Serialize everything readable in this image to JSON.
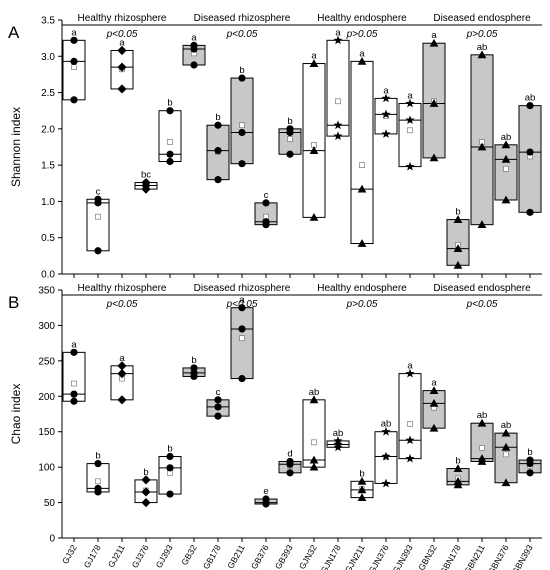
{
  "colors": {
    "healthy_fill": "#ffffff",
    "diseased_fill": "#c8c8c8",
    "stroke": "#000000"
  },
  "categories": [
    "GJ32",
    "GJ178",
    "GJ211",
    "GJ376",
    "GJ393",
    "GB32",
    "GB178",
    "GB211",
    "GB376",
    "GB393",
    "GJN32",
    "GJN178",
    "GJN211",
    "GJN376",
    "GJN393",
    "GBN32",
    "GBN178",
    "GBN211",
    "GBN376",
    "GBN393"
  ],
  "chart_data": [
    {
      "type": "box",
      "panel_label": "A",
      "ylabel": "Shannon index",
      "ylim": [
        0.0,
        3.5
      ],
      "yticks": [
        "0.0",
        "0.5",
        "1.0",
        "1.5",
        "2.0",
        "2.5",
        "3.0",
        "3.5"
      ],
      "groups": [
        {
          "title": "Healthy rhizosphere",
          "pval": "p<0.05",
          "fill": "healthy"
        },
        {
          "title": "Diseased rhizosphere",
          "pval": "p<0.05",
          "fill": "diseased"
        },
        {
          "title": "Healthy endosphere",
          "pval": "p>0.05",
          "fill": "healthy"
        },
        {
          "title": "Diseased endosphere",
          "pval": "p>0.05",
          "fill": "diseased"
        }
      ],
      "boxes": [
        {
          "min": 2.4,
          "median": 2.93,
          "max": 3.22,
          "mean": 2.85,
          "points": [
            3.22,
            2.93,
            2.4
          ],
          "marker": "circle",
          "letter": "a"
        },
        {
          "min": 0.32,
          "median": 0.98,
          "max": 1.03,
          "mean": 0.79,
          "points": [
            1.03,
            0.98,
            0.32
          ],
          "marker": "circle",
          "letter": "c"
        },
        {
          "min": 2.55,
          "median": 2.85,
          "max": 3.08,
          "mean": 2.82,
          "points": [
            3.08,
            2.85,
            2.55
          ],
          "marker": "diamond",
          "letter": "a"
        },
        {
          "min": 1.17,
          "median": 1.22,
          "max": 1.26,
          "mean": 1.22,
          "points": [
            1.26,
            1.22,
            1.17
          ],
          "marker": "diamond",
          "letter": "bc"
        },
        {
          "min": 1.55,
          "median": 1.65,
          "max": 2.25,
          "mean": 1.82,
          "points": [
            2.25,
            1.65,
            1.55
          ],
          "marker": "circle",
          "letter": "b"
        },
        {
          "min": 2.88,
          "median": 3.1,
          "max": 3.15,
          "mean": 3.04,
          "points": [
            3.15,
            3.1,
            2.88
          ],
          "marker": "circle",
          "letter": "a"
        },
        {
          "min": 1.3,
          "median": 1.7,
          "max": 2.05,
          "mean": 1.68,
          "points": [
            2.05,
            1.7,
            1.3
          ],
          "marker": "circle",
          "letter": "b"
        },
        {
          "min": 1.52,
          "median": 1.95,
          "max": 2.7,
          "mean": 2.05,
          "points": [
            2.7,
            1.95,
            1.52
          ],
          "marker": "circle",
          "letter": "b"
        },
        {
          "min": 0.68,
          "median": 0.72,
          "max": 0.98,
          "mean": 0.79,
          "points": [
            0.98,
            0.72,
            0.68
          ],
          "marker": "circle",
          "letter": "c"
        },
        {
          "min": 1.65,
          "median": 1.95,
          "max": 2.0,
          "mean": 1.86,
          "points": [
            2.0,
            1.95,
            1.65
          ],
          "marker": "circle",
          "letter": "b"
        },
        {
          "min": 0.78,
          "median": 1.7,
          "max": 2.9,
          "mean": 1.78,
          "points": [
            2.9,
            1.7,
            0.78
          ],
          "marker": "triangle",
          "letter": "a"
        },
        {
          "min": 1.9,
          "median": 2.05,
          "max": 3.22,
          "mean": 2.38,
          "points": [
            3.22,
            2.05,
            1.9
          ],
          "marker": "star",
          "letter": "a"
        },
        {
          "min": 0.42,
          "median": 1.17,
          "max": 2.93,
          "mean": 1.5,
          "points": [
            2.93,
            1.17,
            0.42
          ],
          "marker": "triangle",
          "letter": "a"
        },
        {
          "min": 1.93,
          "median": 2.2,
          "max": 2.42,
          "mean": 2.18,
          "points": [
            2.42,
            2.2,
            1.93
          ],
          "marker": "star",
          "letter": "a"
        },
        {
          "min": 1.48,
          "median": 2.12,
          "max": 2.35,
          "mean": 1.98,
          "points": [
            2.35,
            2.12,
            1.48
          ],
          "marker": "star",
          "letter": "a"
        },
        {
          "min": 1.6,
          "median": 2.35,
          "max": 3.18,
          "mean": 2.38,
          "points": [
            3.18,
            2.35,
            1.6
          ],
          "marker": "triangle",
          "letter": "a"
        },
        {
          "min": 0.12,
          "median": 0.35,
          "max": 0.75,
          "mean": 0.4,
          "points": [
            0.75,
            0.35,
            0.12
          ],
          "marker": "triangle",
          "letter": "b"
        },
        {
          "min": 0.68,
          "median": 1.75,
          "max": 3.02,
          "mean": 1.82,
          "points": [
            3.02,
            1.75,
            0.68
          ],
          "marker": "triangle",
          "letter": "ab"
        },
        {
          "min": 1.02,
          "median": 1.58,
          "max": 1.78,
          "mean": 1.45,
          "points": [
            1.78,
            1.58,
            1.02
          ],
          "marker": "triangle",
          "letter": "ab"
        },
        {
          "min": 0.85,
          "median": 1.68,
          "max": 2.32,
          "mean": 1.62,
          "points": [
            2.32,
            1.68,
            0.85
          ],
          "marker": "circle",
          "letter": "ab"
        }
      ]
    },
    {
      "type": "box",
      "panel_label": "B",
      "ylabel": "Chao index",
      "ylim": [
        0,
        350
      ],
      "yticks": [
        "0",
        "50",
        "100",
        "150",
        "200",
        "250",
        "300",
        "350"
      ],
      "groups": [
        {
          "title": "Healthy rhizosphere",
          "pval": "p<0.05",
          "fill": "healthy"
        },
        {
          "title": "Diseased rhizosphere",
          "pval": "p<0.05",
          "fill": "diseased"
        },
        {
          "title": "Healthy endosphere",
          "pval": "p>0.05",
          "fill": "healthy"
        },
        {
          "title": "Diseased endosphere",
          "pval": "p<0.05",
          "fill": "diseased"
        }
      ],
      "boxes": [
        {
          "min": 193,
          "median": 203,
          "max": 262,
          "mean": 218,
          "points": [
            262,
            203,
            193
          ],
          "marker": "circle",
          "letter": "a"
        },
        {
          "min": 65,
          "median": 70,
          "max": 105,
          "mean": 80,
          "points": [
            105,
            70,
            65
          ],
          "marker": "circle",
          "letter": "b"
        },
        {
          "min": 195,
          "median": 232,
          "max": 243,
          "mean": 225,
          "points": [
            243,
            232,
            195
          ],
          "marker": "diamond",
          "letter": "a"
        },
        {
          "min": 50,
          "median": 65,
          "max": 82,
          "mean": 67,
          "points": [
            82,
            65,
            50
          ],
          "marker": "diamond",
          "letter": "b"
        },
        {
          "min": 62,
          "median": 99,
          "max": 115,
          "mean": 92,
          "points": [
            115,
            99,
            62
          ],
          "marker": "circle",
          "letter": "b"
        },
        {
          "min": 228,
          "median": 233,
          "max": 240,
          "mean": 234,
          "points": [
            240,
            233,
            228
          ],
          "marker": "circle",
          "letter": "b"
        },
        {
          "min": 172,
          "median": 185,
          "max": 195,
          "mean": 185,
          "points": [
            195,
            185,
            172
          ],
          "marker": "circle",
          "letter": "c"
        },
        {
          "min": 225,
          "median": 295,
          "max": 325,
          "mean": 282,
          "points": [
            325,
            295,
            225
          ],
          "marker": "circle",
          "letter": "a"
        },
        {
          "min": 48,
          "median": 50,
          "max": 55,
          "mean": 51,
          "points": [
            55,
            50,
            48
          ],
          "marker": "circle",
          "letter": "e"
        },
        {
          "min": 92,
          "median": 104,
          "max": 108,
          "mean": 102,
          "points": [
            108,
            104,
            92
          ],
          "marker": "circle",
          "letter": "d"
        },
        {
          "min": 100,
          "median": 110,
          "max": 195,
          "mean": 135,
          "points": [
            195,
            110,
            100
          ],
          "marker": "triangle",
          "letter": "ab"
        },
        {
          "min": 128,
          "median": 132,
          "max": 137,
          "mean": 132,
          "points": [
            137,
            132,
            128
          ],
          "marker": "star",
          "letter": "ab"
        },
        {
          "min": 57,
          "median": 68,
          "max": 80,
          "mean": 69,
          "points": [
            80,
            68,
            57
          ],
          "marker": "triangle",
          "letter": "b"
        },
        {
          "min": 77,
          "median": 115,
          "max": 150,
          "mean": 114,
          "points": [
            150,
            115,
            77
          ],
          "marker": "star",
          "letter": "ab"
        },
        {
          "min": 112,
          "median": 138,
          "max": 232,
          "mean": 161,
          "points": [
            232,
            138,
            112
          ],
          "marker": "star",
          "letter": "a"
        },
        {
          "min": 155,
          "median": 190,
          "max": 208,
          "mean": 184,
          "points": [
            208,
            190,
            155
          ],
          "marker": "triangle",
          "letter": "a"
        },
        {
          "min": 75,
          "median": 80,
          "max": 98,
          "mean": 84,
          "points": [
            98,
            80,
            75
          ],
          "marker": "triangle",
          "letter": "b"
        },
        {
          "min": 108,
          "median": 112,
          "max": 162,
          "mean": 127,
          "points": [
            162,
            112,
            108
          ],
          "marker": "triangle",
          "letter": "ab"
        },
        {
          "min": 78,
          "median": 128,
          "max": 148,
          "mean": 118,
          "points": [
            148,
            128,
            78
          ],
          "marker": "triangle",
          "letter": "ab"
        },
        {
          "min": 92,
          "median": 105,
          "max": 110,
          "mean": 102,
          "points": [
            110,
            105,
            92
          ],
          "marker": "circle",
          "letter": "b"
        }
      ]
    }
  ]
}
